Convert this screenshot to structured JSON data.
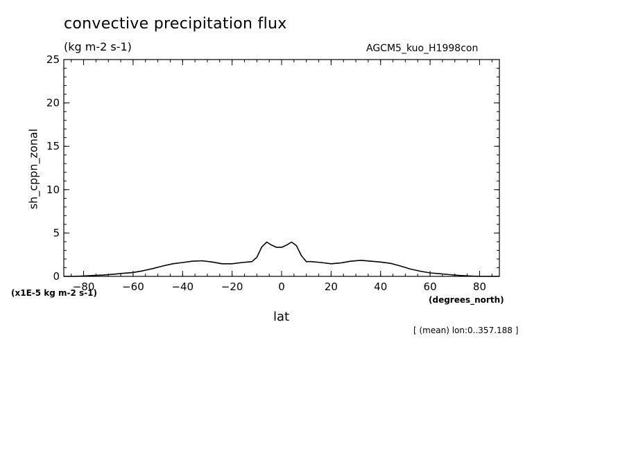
{
  "chart_data": {
    "type": "line",
    "title": "convective precipitation flux",
    "subtitle": "(kg m-2 s-1)",
    "run_label": "AGCM5_kuo_H1998con",
    "xlabel": "lat",
    "x_units": "(degrees_north)",
    "ylabel": "sh_cppn_zonal",
    "y_scale_note": "(x1E-5 kg m-2 s-1)",
    "averaging_note": "[ (mean) lon:0..357.188 ]",
    "xlim": [
      -88,
      88
    ],
    "ylim": [
      0,
      25
    ],
    "x_ticks": [
      -80,
      -60,
      -40,
      -20,
      0,
      20,
      40,
      60,
      80
    ],
    "x_tick_labels": [
      "-80",
      "-60",
      "-40",
      "-20",
      "0",
      "20",
      "40",
      "60",
      "80"
    ],
    "y_ticks": [
      0,
      5,
      10,
      15,
      20,
      25
    ],
    "y_tick_labels": [
      "0",
      "5",
      "10",
      "15",
      "20",
      "25"
    ],
    "grid": false,
    "series": [
      {
        "x": [
          -88,
          -84,
          -80,
          -76,
          -72,
          -68,
          -64,
          -60,
          -56,
          -52,
          -48,
          -44,
          -40,
          -36,
          -32,
          -28,
          -24,
          -20,
          -16,
          -12,
          -10,
          -8,
          -6,
          -4,
          -2,
          0,
          2,
          4,
          6,
          8,
          10,
          12,
          16,
          20,
          24,
          28,
          32,
          36,
          40,
          44,
          48,
          52,
          56,
          60,
          64,
          68,
          72,
          76,
          80,
          84,
          88
        ],
        "y": [
          0.0,
          0.0,
          0.05,
          0.1,
          0.15,
          0.25,
          0.35,
          0.45,
          0.65,
          0.9,
          1.2,
          1.45,
          1.6,
          1.75,
          1.8,
          1.65,
          1.45,
          1.45,
          1.6,
          1.7,
          2.2,
          3.4,
          3.95,
          3.6,
          3.35,
          3.35,
          3.6,
          3.95,
          3.55,
          2.4,
          1.7,
          1.7,
          1.6,
          1.45,
          1.55,
          1.75,
          1.85,
          1.75,
          1.65,
          1.5,
          1.2,
          0.85,
          0.6,
          0.4,
          0.3,
          0.2,
          0.1,
          0.05,
          0.0,
          0.0,
          0.0
        ]
      }
    ]
  }
}
